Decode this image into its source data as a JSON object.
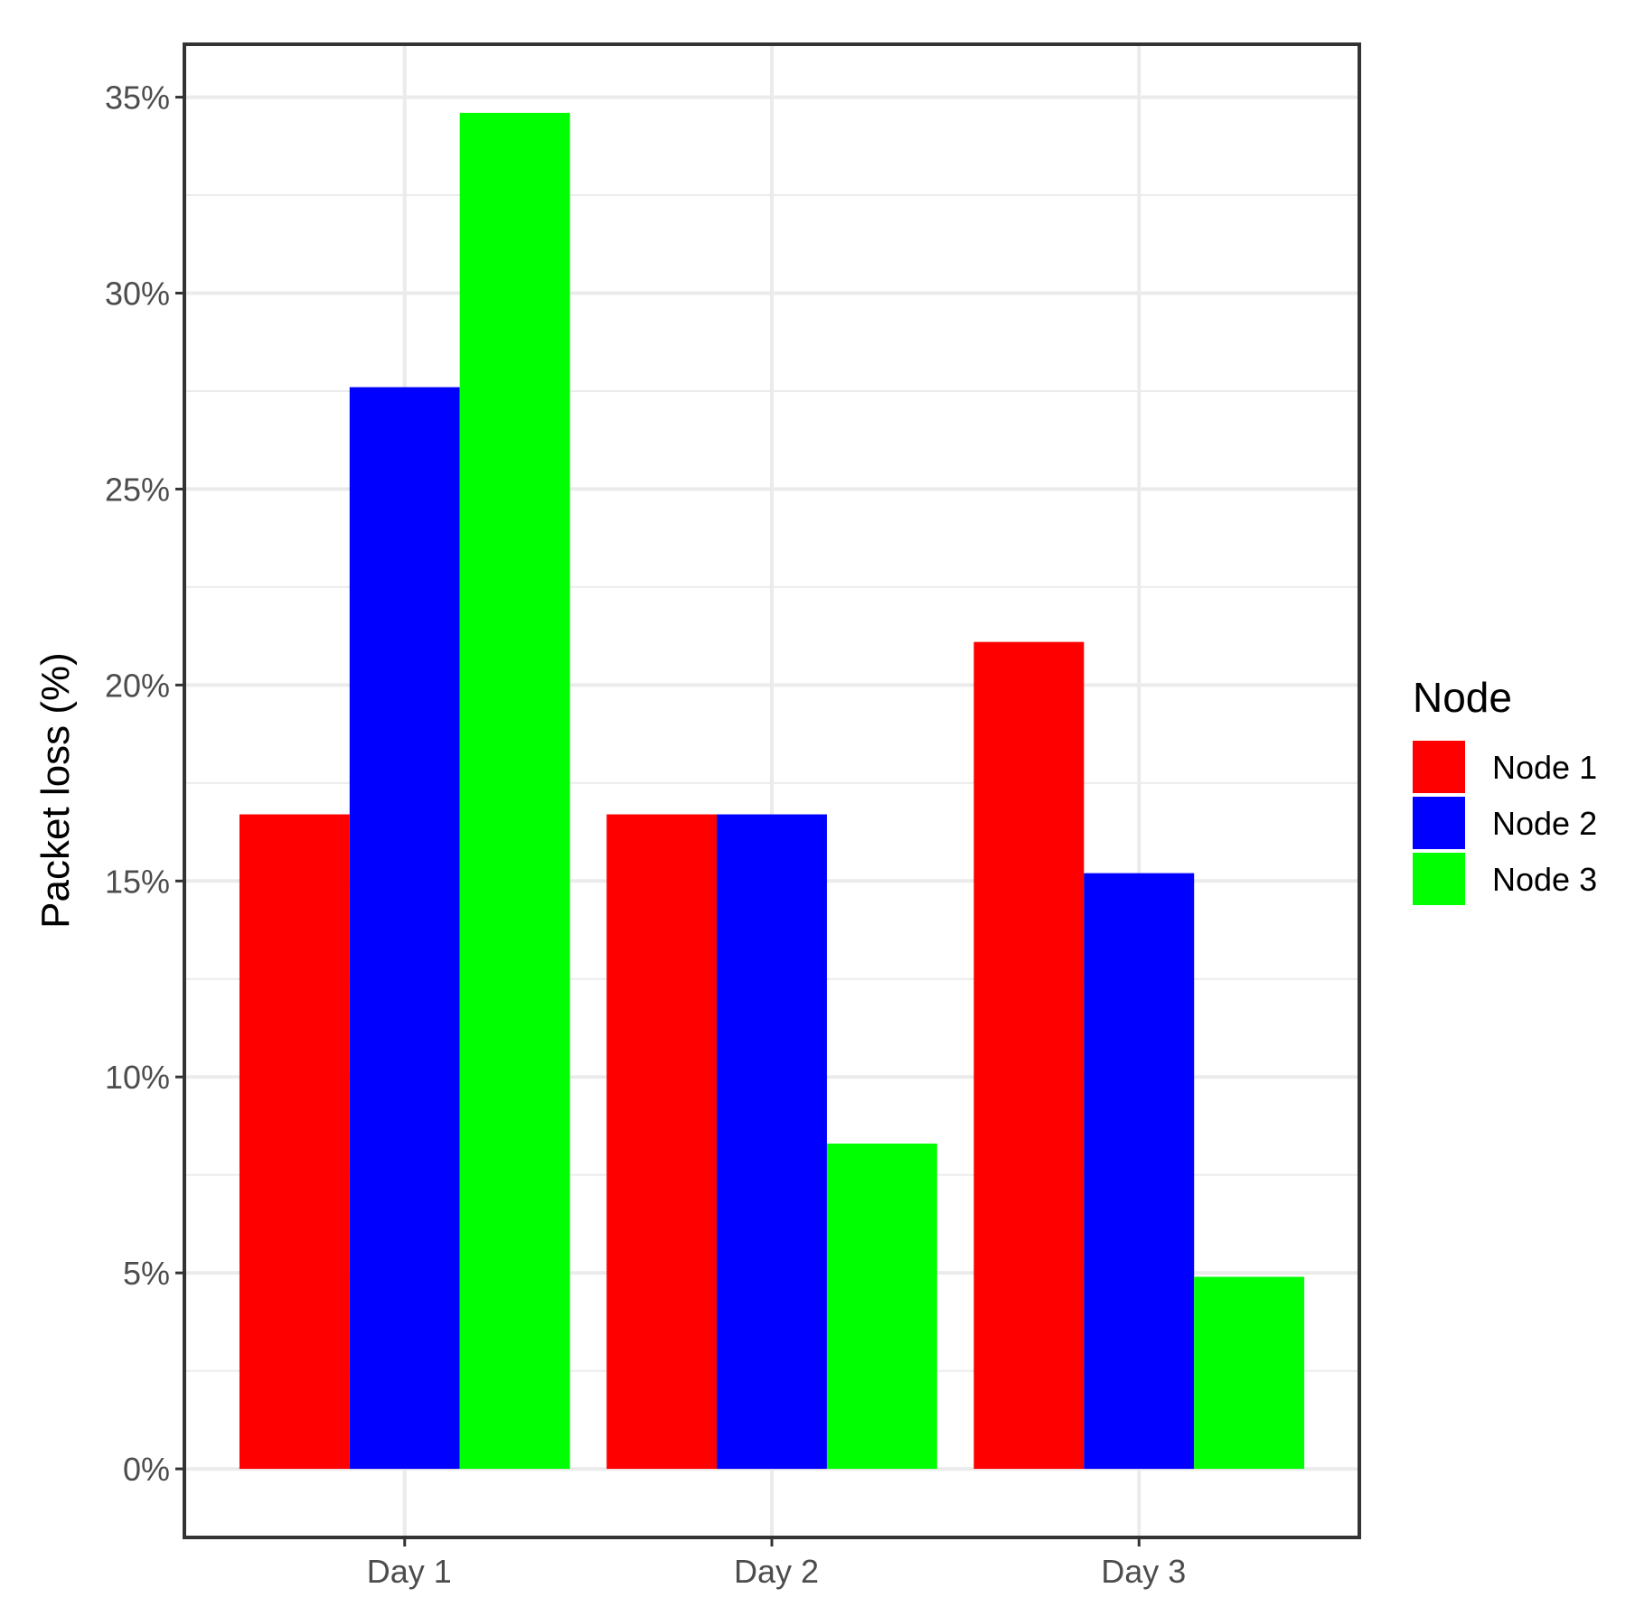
{
  "chart_data": {
    "type": "bar",
    "categories": [
      "Day 1",
      "Day 2",
      "Day 3"
    ],
    "series": [
      {
        "name": "Node 1",
        "color": "#ff0000",
        "values": [
          16.7,
          16.7,
          21.1
        ]
      },
      {
        "name": "Node 2",
        "color": "#0000ff",
        "values": [
          27.6,
          16.7,
          15.2
        ]
      },
      {
        "name": "Node 3",
        "color": "#00ff00",
        "values": [
          34.6,
          8.3,
          4.9
        ]
      }
    ],
    "xlabel": "",
    "ylabel": "Packet loss (%)",
    "ylim": [
      -1.75,
      36.35
    ],
    "yticks": [
      0,
      5,
      10,
      15,
      20,
      25,
      30,
      35
    ],
    "ytick_labels": [
      "0%",
      "5%",
      "10%",
      "15%",
      "20%",
      "25%",
      "30%",
      "35%"
    ],
    "grid": true,
    "legend": {
      "title": "Node",
      "position": "right"
    }
  }
}
